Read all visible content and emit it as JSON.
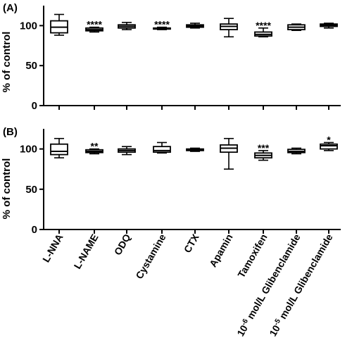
{
  "chart_data": [
    {
      "type": "box",
      "panel_label": "(A)",
      "ylabel": "% of control",
      "ylim": [
        0,
        125
      ],
      "yticks": [
        "0",
        "50",
        "100"
      ],
      "grid": false,
      "categories": [
        "L-NNA",
        "L-NAME",
        "ODQ",
        "Cystamine",
        "CTX",
        "Apamin",
        "Tamoxifen",
        "Glib6",
        "Glib5"
      ],
      "boxes": [
        {
          "min": 88,
          "q1": 91,
          "median": 98,
          "q3": 106,
          "max": 114,
          "sig": ""
        },
        {
          "min": 92,
          "q1": 93.5,
          "median": 95,
          "q3": 97,
          "max": 98,
          "sig": "****"
        },
        {
          "min": 95,
          "q1": 97,
          "median": 99,
          "q3": 101,
          "max": 104,
          "sig": ""
        },
        {
          "min": 95,
          "q1": 96,
          "median": 96.5,
          "q3": 97,
          "max": 98,
          "sig": "****"
        },
        {
          "min": 97,
          "q1": 98,
          "median": 99.5,
          "q3": 101,
          "max": 103,
          "sig": ""
        },
        {
          "min": 86,
          "q1": 95,
          "median": 99,
          "q3": 102,
          "max": 109,
          "sig": ""
        },
        {
          "min": 86,
          "q1": 87,
          "median": 89,
          "q3": 92,
          "max": 97,
          "sig": "****"
        },
        {
          "min": 94,
          "q1": 95,
          "median": 98,
          "q3": 101,
          "max": 102,
          "sig": ""
        },
        {
          "min": 97,
          "q1": 99,
          "median": 100.5,
          "q3": 102,
          "max": 103,
          "sig": ""
        }
      ]
    },
    {
      "type": "box",
      "panel_label": "(B)",
      "ylabel": "% of control",
      "ylim": [
        0,
        125
      ],
      "yticks": [
        "0",
        "50",
        "100"
      ],
      "grid": false,
      "categories": [
        "L-NNA",
        "L-NAME",
        "ODQ",
        "Cystamine",
        "CTX",
        "Apamin",
        "Tamoxifen",
        "Glib6",
        "Glib5"
      ],
      "boxes": [
        {
          "min": 89,
          "q1": 93,
          "median": 97,
          "q3": 106,
          "max": 113,
          "sig": ""
        },
        {
          "min": 94,
          "q1": 95.5,
          "median": 97,
          "q3": 99,
          "max": 100,
          "sig": "**"
        },
        {
          "min": 93,
          "q1": 96,
          "median": 98,
          "q3": 100,
          "max": 103,
          "sig": ""
        },
        {
          "min": 95,
          "q1": 96,
          "median": 98,
          "q3": 103,
          "max": 108,
          "sig": ""
        },
        {
          "min": 97,
          "q1": 98,
          "median": 99,
          "q3": 100,
          "max": 101,
          "sig": ""
        },
        {
          "min": 75,
          "q1": 96,
          "median": 101,
          "q3": 105,
          "max": 113,
          "sig": ""
        },
        {
          "min": 86,
          "q1": 89,
          "median": 92,
          "q3": 95,
          "max": 98,
          "sig": "***"
        },
        {
          "min": 94,
          "q1": 95.5,
          "median": 97,
          "q3": 99.5,
          "max": 101,
          "sig": ""
        },
        {
          "min": 98,
          "q1": 100,
          "median": 104,
          "q3": 106,
          "max": 108,
          "sig": "*"
        }
      ]
    }
  ],
  "x_labels": [
    {
      "text": "L-NNA"
    },
    {
      "text": "L-NAME"
    },
    {
      "text": "ODQ"
    },
    {
      "text": "Cystamine"
    },
    {
      "text": "CTX"
    },
    {
      "text": "Apamin"
    },
    {
      "text": "Tamoxifen"
    },
    {
      "text": "10",
      "sup": "-6",
      "rest": " mol/L Glibenclamide"
    },
    {
      "text": "10",
      "sup": "-5",
      "rest": " mol/L Glibenclamide"
    }
  ]
}
